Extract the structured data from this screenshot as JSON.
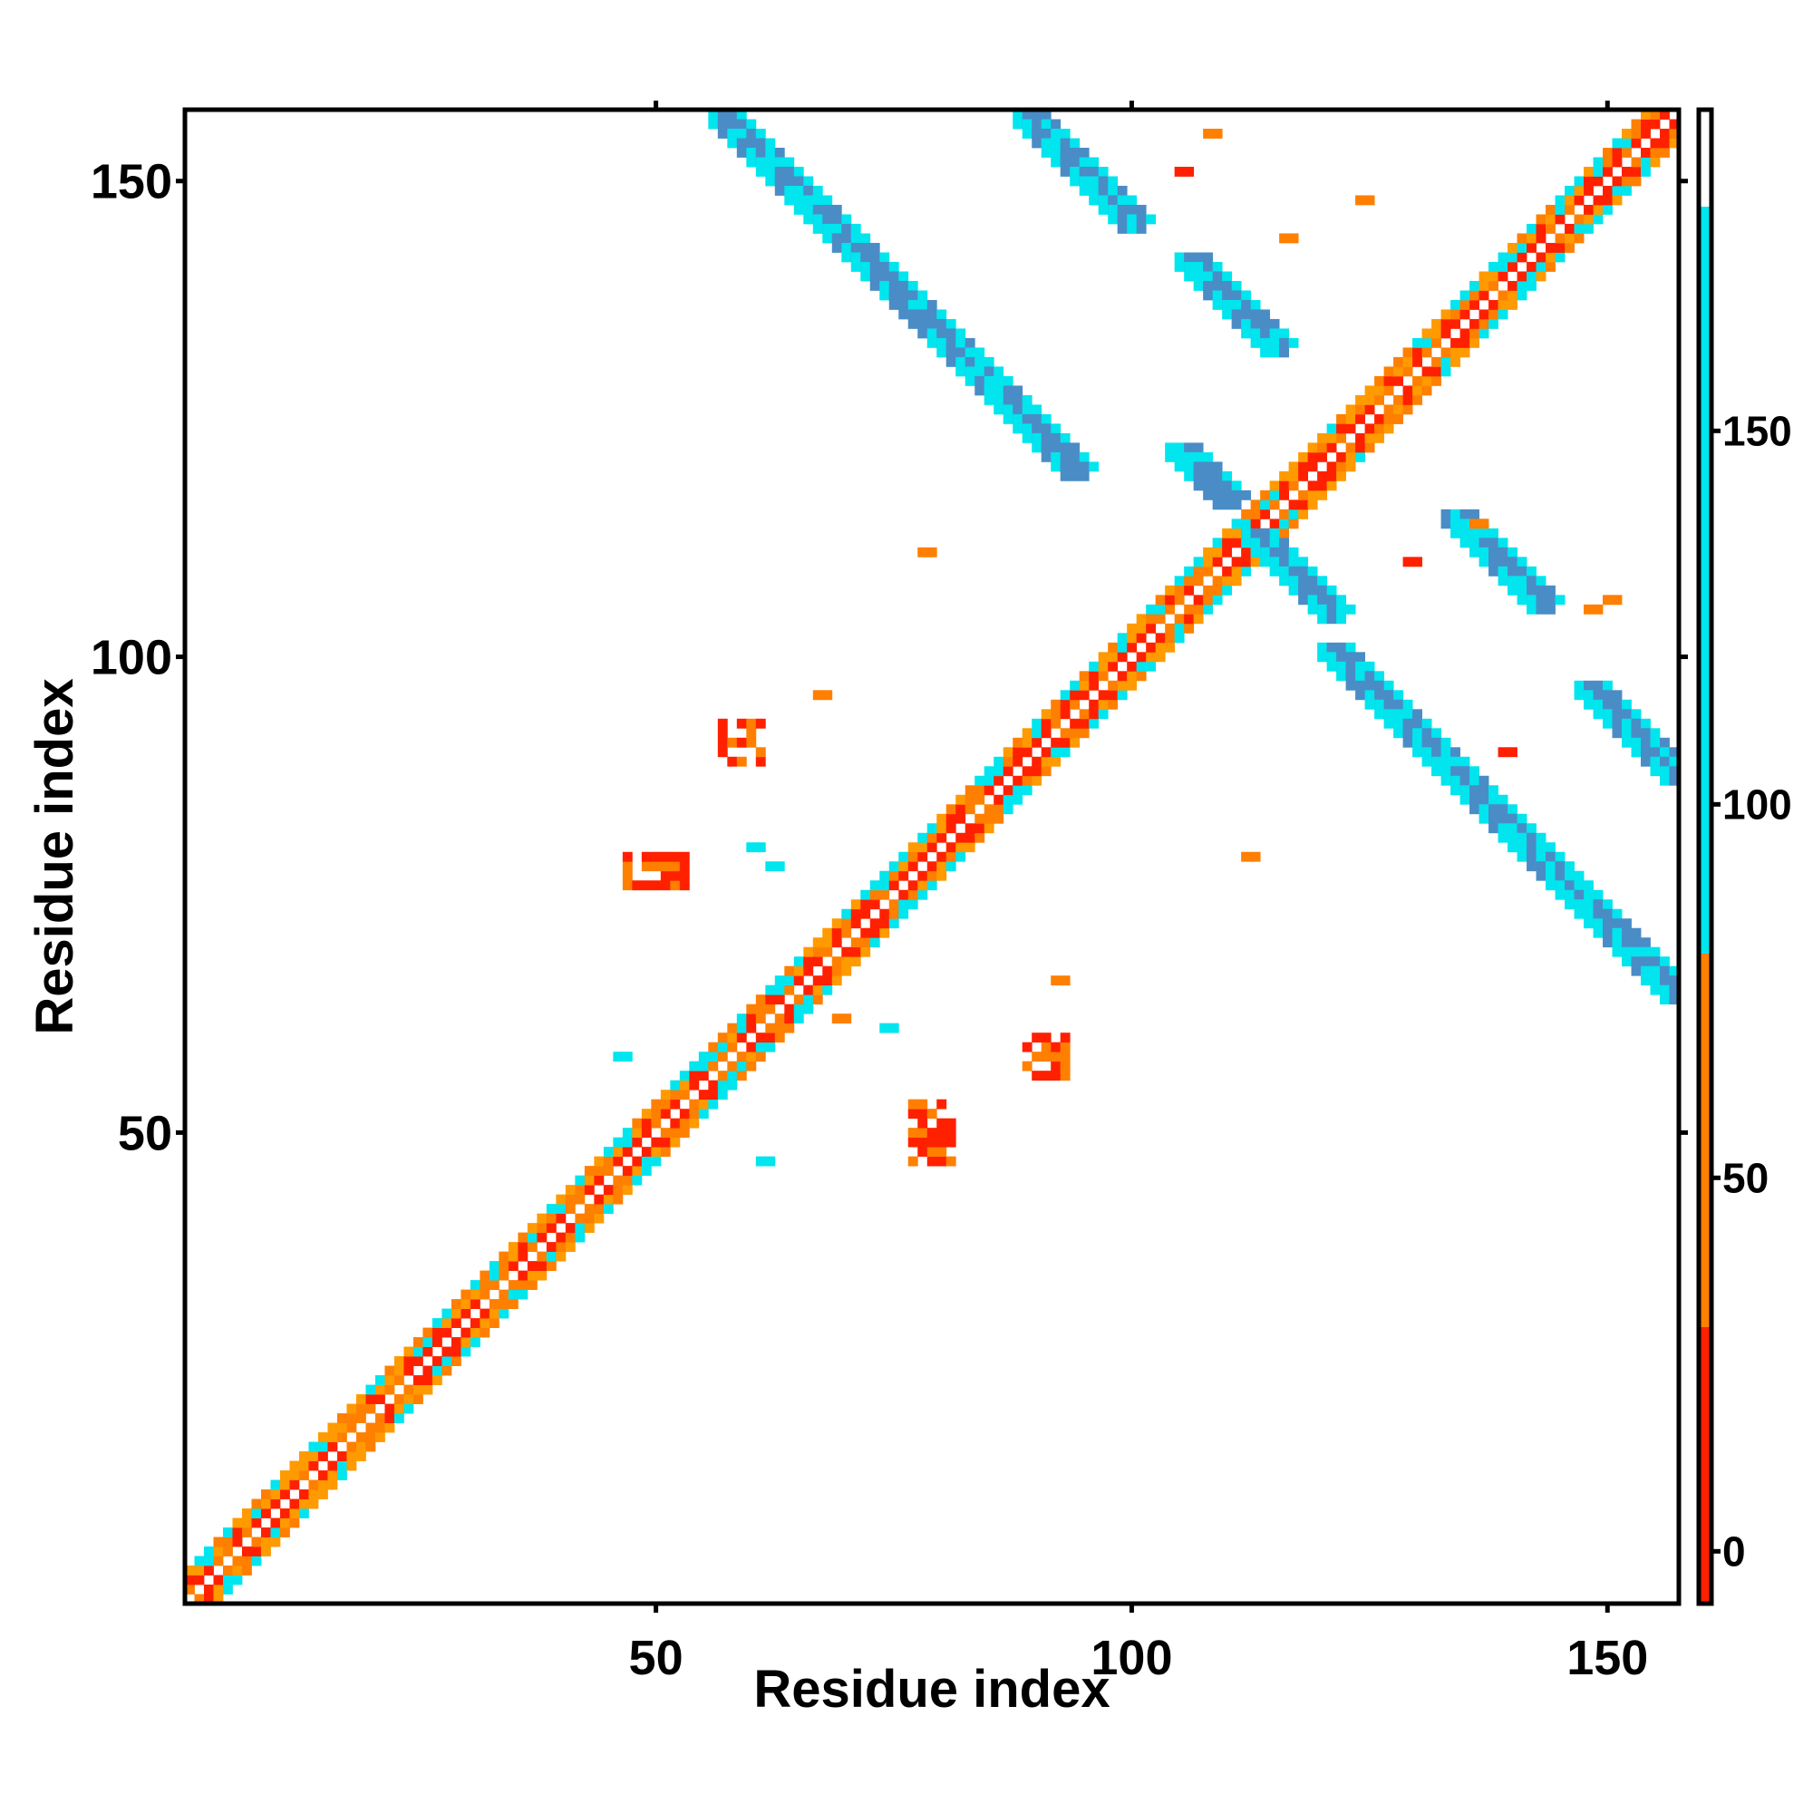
{
  "chart_data": {
    "type": "heatmap",
    "title": "",
    "xlabel": "Residue index",
    "ylabel": "Residue index",
    "xlim": [
      1,
      157
    ],
    "ylim": [
      1,
      157
    ],
    "x_ticks": [
      "50",
      "100",
      "150"
    ],
    "y_ticks": [
      "50",
      "100",
      "150"
    ],
    "colorbar": {
      "ticks": [
        "0",
        "50",
        "100",
        "150"
      ],
      "range": [
        -7,
        193
      ],
      "bands": [
        {
          "from": -7,
          "to": 30,
          "color": "#ff2000"
        },
        {
          "from": 30,
          "to": 80,
          "color": "#ff7f00"
        },
        {
          "from": 80,
          "to": 180,
          "color": "#00e5ee"
        },
        {
          "from": 180,
          "to": 193,
          "color": "#ffffff"
        }
      ],
      "gradient_colors": [
        "#ff0000",
        "#ff6a00",
        "#ff8c00",
        "#00e5ee",
        "#4682b4",
        "#ffffff"
      ]
    },
    "grid": false,
    "legend_position": "right (colorbar)",
    "cell_colors": {
      "red": "#ff2000",
      "orange": "#ff7f00",
      "amber": "#ff9a00",
      "cyan": "#00e5ee",
      "steelblue": "#4a8cc6"
    },
    "regions": [
      {
        "kind": "diagonal",
        "from": 1,
        "to": 157,
        "note": "main diagonal band, width ~3 residues"
      },
      {
        "kind": "antiparallel",
        "x_start": 57,
        "y_start": 157,
        "length": 38,
        "color": "steelblue"
      },
      {
        "kind": "antiparallel",
        "x_start": 89,
        "y_start": 157,
        "length": 12,
        "color": "steelblue"
      },
      {
        "kind": "antiparallel",
        "x_start": 106,
        "y_start": 142,
        "length": 10,
        "color": "steelblue"
      },
      {
        "kind": "antiparallel",
        "x_start": 105,
        "y_start": 122,
        "length": 6,
        "color": "steelblue"
      },
      {
        "kind": "antiparallel",
        "x_start": 113,
        "y_start": 113,
        "length": 9,
        "color": "steelblue"
      },
      {
        "kind": "antiparallel",
        "x_start": 121,
        "y_start": 101,
        "length": 37,
        "color": "steelblue"
      },
      {
        "kind": "antiparallel",
        "x_start": 134,
        "y_start": 115,
        "length": 10,
        "color": "steelblue"
      },
      {
        "kind": "antiparallel",
        "x_start": 148,
        "y_start": 97,
        "length": 10,
        "color": "steelblue"
      },
      {
        "kind": "patch",
        "x": [
          47,
          53
        ],
        "y": [
          76,
          79
        ],
        "color": "red"
      },
      {
        "kind": "patch",
        "x": [
          77,
          81
        ],
        "y": [
          47,
          53
        ],
        "color": "red"
      },
      {
        "kind": "patch",
        "x": [
          57,
          61
        ],
        "y": [
          89,
          93
        ],
        "color": "red"
      },
      {
        "kind": "patch",
        "x": [
          89,
          93
        ],
        "y": [
          56,
          60
        ],
        "color": "red"
      }
    ]
  }
}
